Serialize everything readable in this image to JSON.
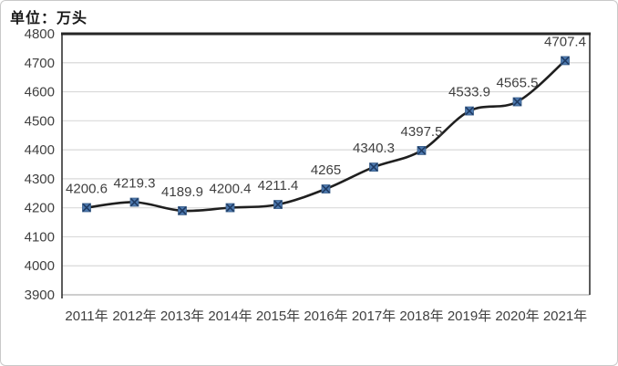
{
  "window": {
    "background": "#ffffff",
    "border_color": "#c9c9c9"
  },
  "chart": {
    "unit_label": "单位：万头"
  },
  "chart_data": {
    "type": "line",
    "title": "单位：万头",
    "xlabel": "",
    "ylabel": "",
    "categories": [
      "2011年",
      "2012年",
      "2013年",
      "2014年",
      "2015年",
      "2016年",
      "2017年",
      "2018年",
      "2019年",
      "2020年",
      "2021年"
    ],
    "values": [
      4200.6,
      4219.3,
      4189.9,
      4200.4,
      4211.4,
      4265,
      4340.3,
      4397.5,
      4533.9,
      4565.5,
      4707.4
    ],
    "point_labels": [
      "4200.6",
      "4219.3",
      "4189.9",
      "4200.4",
      "4211.4",
      "4265",
      "4340.3",
      "4397.5",
      "4533.9",
      "4565.5",
      "4707.4"
    ],
    "ylim": [
      3900,
      4800
    ],
    "ytick_step": 100,
    "yticks": [
      4800,
      4700,
      4600,
      4500,
      4400,
      4300,
      4200,
      4100,
      4000,
      3900
    ],
    "grid": true,
    "legend": "none",
    "smooth": true,
    "marker_shape": "x-square",
    "colors": {
      "line": "#1f1f1f",
      "marker_fill": "#4e7ab0",
      "marker_stroke": "#1f3b63",
      "grid": "#d9d9d9",
      "grid_bottom": "#b0b0b0",
      "axis": "#262626",
      "tick_text": "#404040",
      "label_text": "#3f3f3f"
    }
  }
}
